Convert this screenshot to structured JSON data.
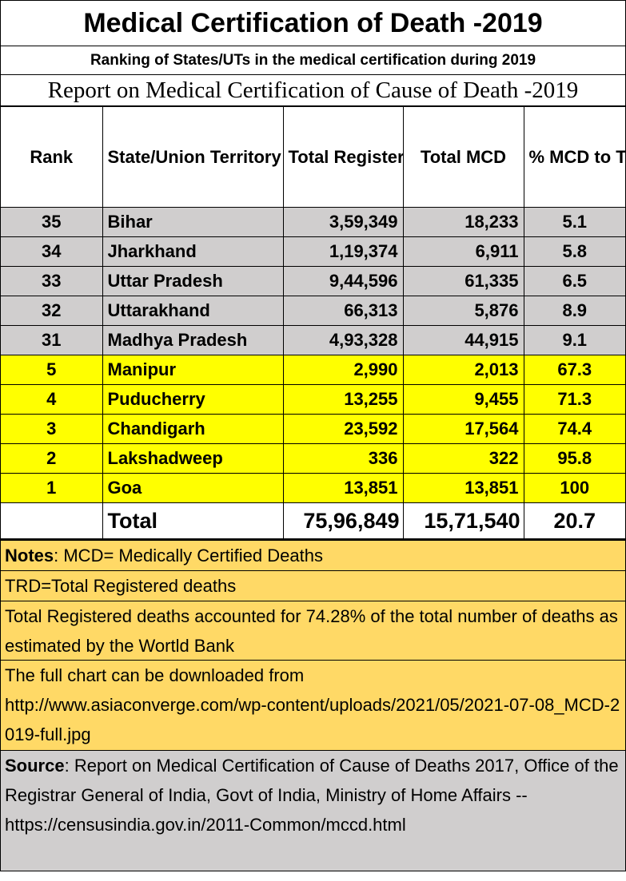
{
  "title": "Medical Certification  of Death -2019",
  "subtitle": "Ranking of States/UTs in the medical certification during 2019",
  "report": "Report on Medical Certification of Cause of Death -2019",
  "headers": {
    "rank": "Rank",
    "state": "State/Union Territory",
    "trd": "Total Registered Deaths",
    "mcd": "Total MCD",
    "pct": "% MCD to TRD"
  },
  "rows": [
    {
      "rank": "35",
      "state": "Bihar",
      "trd": "3,59,349",
      "mcd": "18,233",
      "pct": "5.1",
      "group": "bottom"
    },
    {
      "rank": "34",
      "state": "Jharkhand",
      "trd": "1,19,374",
      "mcd": "6,911",
      "pct": "5.8",
      "group": "bottom"
    },
    {
      "rank": "33",
      "state": "Uttar Pradesh",
      "trd": "9,44,596",
      "mcd": "61,335",
      "pct": "6.5",
      "group": "bottom"
    },
    {
      "rank": "32",
      "state": "Uttarakhand",
      "trd": "66,313",
      "mcd": "5,876",
      "pct": "8.9",
      "group": "bottom"
    },
    {
      "rank": "31",
      "state": "Madhya Pradesh",
      "trd": "4,93,328",
      "mcd": "44,915",
      "pct": "9.1",
      "group": "bottom"
    },
    {
      "rank": "5",
      "state": "Manipur",
      "trd": "2,990",
      "mcd": "2,013",
      "pct": "67.3",
      "group": "top"
    },
    {
      "rank": "4",
      "state": "Puducherry",
      "trd": "13,255",
      "mcd": "9,455",
      "pct": "71.3",
      "group": "top"
    },
    {
      "rank": "3",
      "state": "Chandigarh",
      "trd": "23,592",
      "mcd": "17,564",
      "pct": "74.4",
      "group": "top"
    },
    {
      "rank": "2",
      "state": "Lakshadweep",
      "trd": "336",
      "mcd": "322",
      "pct": "95.8",
      "group": "top"
    },
    {
      "rank": "1",
      "state": "Goa",
      "trd": "13,851",
      "mcd": "13,851",
      "pct": "100",
      "group": "top"
    }
  ],
  "total": {
    "label": "Total",
    "trd": "75,96,849",
    "mcd": "15,71,540",
    "pct": "20.7"
  },
  "notes": {
    "note1_label": "Notes",
    "note1_text": ": MCD= Medically Certified Deaths",
    "note2": "TRD=Total Registered deaths",
    "note3": "Total Registered deaths accounted for 74.28% of the total number of deaths as estimated by the Wortld Bank",
    "note4_line1": "The full chart can be downloaded from",
    "note4_url": "http://www.asiaconverge.com/wp-content/uploads/2021/05/2021-07-08_MCD-2019-full.jpg"
  },
  "source": {
    "label": "Source",
    "text": ": Report on Medical Certification of Cause of Deaths   2017, Office of the Registrar General of India, Govt of India, Ministry of Home Affairs -- https://censusindia.gov.in/2011-Common/mccd.html"
  },
  "colors": {
    "bottom_rows": "#d0cece",
    "top_rows": "#ffff00",
    "notes_bg": "#ffd966",
    "source_bg": "#d0cece"
  }
}
